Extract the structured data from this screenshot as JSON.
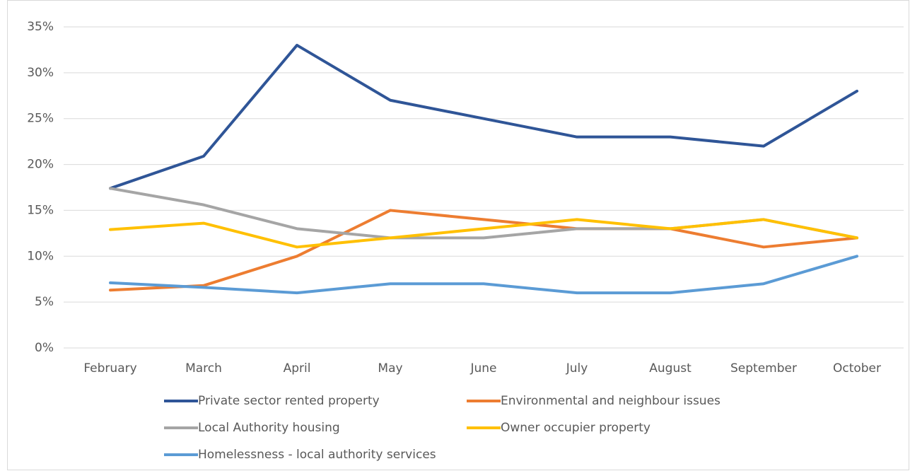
{
  "chart_data": {
    "type": "line",
    "categories": [
      "February",
      "March",
      "April",
      "May",
      "June",
      "July",
      "August",
      "September",
      "October"
    ],
    "series": [
      {
        "name": "Private sector rented property",
        "color": "#2f5597",
        "values": [
          17.4,
          20.9,
          33,
          27,
          25,
          23,
          23,
          22,
          28
        ]
      },
      {
        "name": "Environmental and neighbour issues",
        "color": "#ed7d31",
        "values": [
          6.3,
          6.8,
          10,
          15,
          14,
          13,
          13,
          11,
          12
        ]
      },
      {
        "name": "Local Authority housing",
        "color": "#a5a5a5",
        "values": [
          17.4,
          15.6,
          13,
          12,
          12,
          13,
          13,
          14,
          12
        ]
      },
      {
        "name": "Owner occupier property",
        "color": "#ffc000",
        "values": [
          12.9,
          13.6,
          11,
          12,
          13,
          14,
          13,
          14,
          12
        ]
      },
      {
        "name": "Homelessness - local authority services",
        "color": "#5b9bd5",
        "values": [
          7.1,
          6.6,
          6,
          7,
          7,
          6,
          6,
          7,
          10
        ]
      }
    ],
    "ylim": [
      0,
      35
    ],
    "yticks": [
      {
        "value": 0,
        "label": "0%"
      },
      {
        "value": 5,
        "label": "5%"
      },
      {
        "value": 10,
        "label": "10%"
      },
      {
        "value": 15,
        "label": "15%"
      },
      {
        "value": 20,
        "label": "20%"
      },
      {
        "value": 25,
        "label": "25%"
      },
      {
        "value": 30,
        "label": "30%"
      },
      {
        "value": 35,
        "label": "35%"
      }
    ],
    "grid": true,
    "legend": "bottom"
  }
}
